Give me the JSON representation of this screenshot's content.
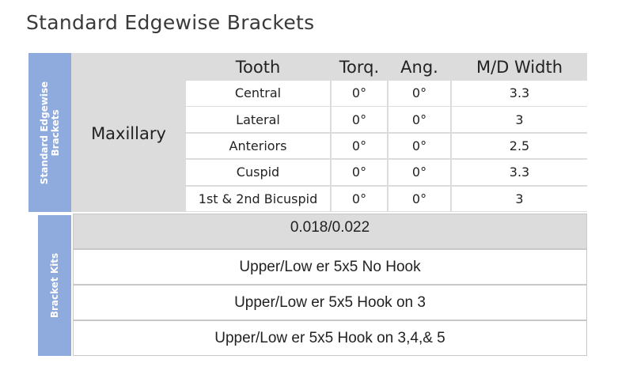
{
  "title": "Standard Edgewise Brackets",
  "side_labels": {
    "brackets": "Standard Edgewise Brackets",
    "kits": "Bracket Kits"
  },
  "table": {
    "group": "Maxillary",
    "headers": [
      "Tooth",
      "Torq.",
      "Ang.",
      "M/D Width"
    ],
    "rows": [
      [
        "Central",
        "0°",
        "0°",
        "3.3"
      ],
      [
        "Lateral",
        "0°",
        "0°",
        "3"
      ],
      [
        "Anteriors",
        "0°",
        "0°",
        "2.5"
      ],
      [
        "Cuspid",
        "0°",
        "0°",
        "3.3"
      ],
      [
        "1st & 2nd Bicuspid",
        "0°",
        "0°",
        "3"
      ]
    ]
  },
  "kits": {
    "size": "0.018/0.022",
    "items": [
      "Upper/Low er 5x5 No Hook",
      "Upper/Low er 5x5 Hook on 3",
      "Upper/Low er 5x5 Hook on 3,4,& 5"
    ]
  },
  "colors": {
    "side_label_bg": "#8faadc",
    "header_bg": "#dcdcdc"
  }
}
